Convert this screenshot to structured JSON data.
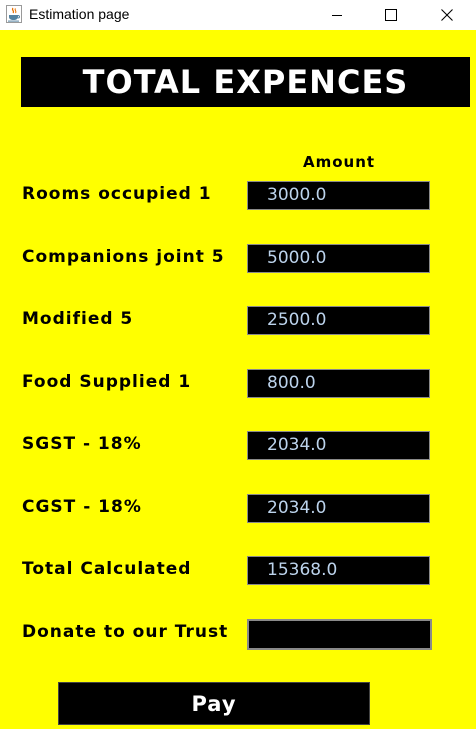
{
  "window": {
    "title": "Estimation page",
    "icon": "java-cup-icon"
  },
  "banner": {
    "title": "TOTAL EXPENCES"
  },
  "table": {
    "amount_header": "Amount",
    "rows": [
      {
        "label": "Rooms occupied 1",
        "value": "3000.0"
      },
      {
        "label": "Companions joint 5",
        "value": "5000.0"
      },
      {
        "label": "Modified 5",
        "value": "2500.0"
      },
      {
        "label": "Food Supplied 1",
        "value": "800.0"
      },
      {
        "label": "SGST - 18%",
        "value": "2034.0"
      },
      {
        "label": "CGST - 18%",
        "value": "2034.0"
      },
      {
        "label": "Total Calculated",
        "value": "15368.0"
      }
    ]
  },
  "donate": {
    "label": "Donate to our Trust",
    "value": ""
  },
  "pay": {
    "label": "Pay"
  },
  "colors": {
    "background": "#ffff00",
    "panel": "#000000",
    "value_text": "#bcd3ec"
  }
}
